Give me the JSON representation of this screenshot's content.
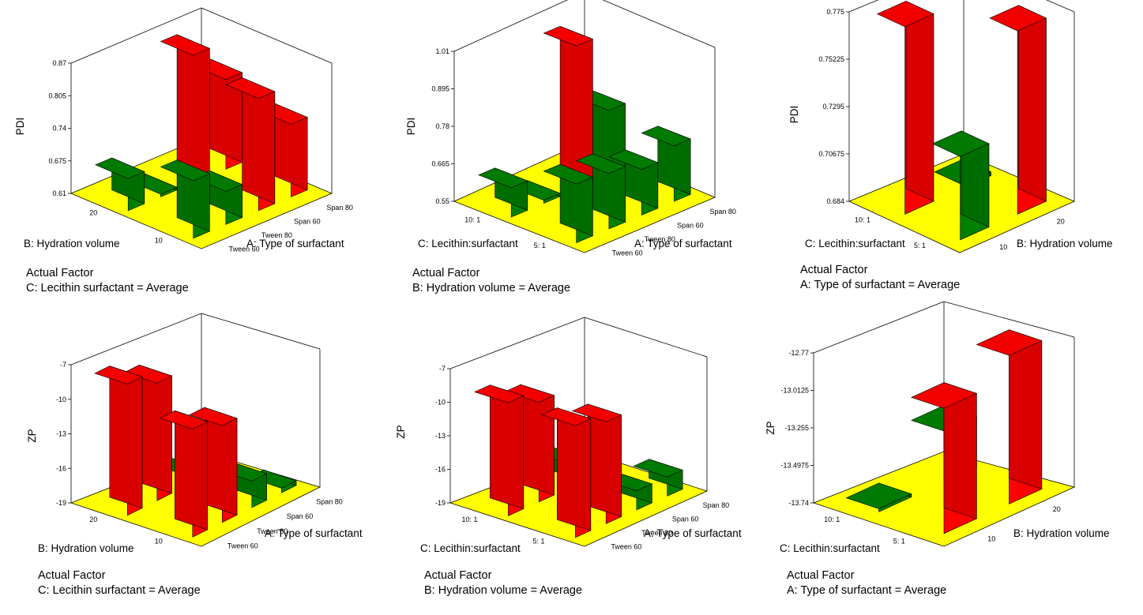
{
  "chart_data": [
    {
      "type": "bar3d",
      "ylabel": "PDI",
      "ytick_labels": [
        "0.61",
        "0.675",
        "0.74",
        "0.805",
        "0.87"
      ],
      "ylim": [
        0.61,
        0.87
      ],
      "x_axis": {
        "label": "A: Type of surfactant",
        "categories": [
          "Tween 60",
          "Tween 80",
          "Span 60",
          "Span 80"
        ]
      },
      "depth_axis": {
        "label": "B: Hydration volume",
        "categories": [
          "10",
          "20"
        ]
      },
      "values": {
        "20": [
          0.674,
          0.614,
          0.865,
          0.789
        ],
        "10": [
          0.725,
          0.676,
          0.834,
          0.755
        ]
      },
      "actual_factor": {
        "heading": "Actual Factor",
        "text": "C: Lecithin surfactant = Average"
      }
    },
    {
      "type": "bar3d",
      "ylabel": "PDI",
      "ytick_labels": [
        "0.55",
        "0.665",
        "0.78",
        "0.895",
        "1.01"
      ],
      "ylim": [
        0.55,
        1.01
      ],
      "x_axis": {
        "label": "A: Type of surfactant",
        "categories": [
          "Tween 60",
          "Tween 80",
          "Span 60",
          "Span 80"
        ]
      },
      "depth_axis": {
        "label": "C: Lecithin:surfactant",
        "categories": [
          "5: 1",
          "10: 1"
        ]
      },
      "values": {
        "10: 1": [
          0.64,
          0.555,
          0.99,
          0.75
        ],
        "5: 1": [
          0.73,
          0.72,
          0.69,
          0.72
        ]
      },
      "actual_factor": {
        "heading": "Actual Factor",
        "text": "B: Hydration volume = Average"
      }
    },
    {
      "type": "bar3d",
      "ylabel": "PDI",
      "ytick_labels": [
        "0.684",
        "0.70675",
        "0.7295",
        "0.75225",
        "0.775"
      ],
      "ylim": [
        0.684,
        0.775
      ],
      "x_axis": {
        "label": "B: Hydration volume",
        "categories": [
          "10",
          "20"
        ]
      },
      "depth_axis": {
        "label": "C: Lecithin:surfactant",
        "categories": [
          "5: 1",
          "10: 1"
        ]
      },
      "values": {
        "10: 1": [
          0.774,
          0.685
        ],
        "5: 1": [
          0.724,
          0.772
        ]
      },
      "actual_factor": {
        "heading": "Actual Factor",
        "text": "A: Type of surfactant = Average"
      }
    },
    {
      "type": "bar3d",
      "ylabel": "ZP",
      "ytick_labels": [
        "-19",
        "-16",
        "-13",
        "-10",
        "-7"
      ],
      "ylim": [
        -19,
        -7
      ],
      "x_axis": {
        "label": "A: Type of surfactant",
        "categories": [
          "Tween 60",
          "Tween 80",
          "Span 60",
          "Span 80"
        ]
      },
      "depth_axis": {
        "label": "B: Hydration volume",
        "categories": [
          "10",
          "20"
        ]
      },
      "values": {
        "20": [
          -7.6,
          -8.8,
          -18.1,
          -16.6
        ],
        "10": [
          -9.6,
          -10.6,
          -16.7,
          -18.6
        ]
      },
      "actual_factor": {
        "heading": "Actual Factor",
        "text": "C: Lecithin surfactant = Average"
      }
    },
    {
      "type": "bar3d",
      "ylabel": "ZP",
      "ytick_labels": [
        "-19",
        "-16",
        "-13",
        "-10",
        "-7"
      ],
      "ylim": [
        -19,
        -7
      ],
      "x_axis": {
        "label": "A: Type of surfactant",
        "categories": [
          "Tween 60",
          "Tween 80",
          "Span 60",
          "Span 80"
        ]
      },
      "depth_axis": {
        "label": "C: Lecithin:surfactant",
        "categories": [
          "5: 1",
          "10: 1"
        ]
      },
      "values": {
        "10: 1": [
          -8.9,
          -10.1,
          -16.9,
          -17.4
        ],
        "5: 1": [
          -9.0,
          -9.9,
          -17.3,
          -17.3
        ]
      },
      "actual_factor": {
        "heading": "Actual Factor",
        "text": "B: Hydration volume = Average"
      }
    },
    {
      "type": "bar3d",
      "ylabel": "ZP",
      "ytick_labels": [
        "-13.74",
        "-13.4975",
        "-13.255",
        "-13.0125",
        "-12.77"
      ],
      "ylim": [
        -13.74,
        -12.77
      ],
      "x_axis": {
        "label": "B: Hydration volume",
        "categories": [
          "10",
          "20"
        ]
      },
      "depth_axis": {
        "label": "C: Lecithin:surfactant",
        "categories": [
          "5: 1",
          "10: 1"
        ]
      },
      "values": {
        "10: 1": [
          -13.73,
          -13.41
        ],
        "5: 1": [
          -12.93,
          -12.78
        ]
      },
      "actual_factor": {
        "heading": "Actual Factor",
        "text": "A: Type of surfactant = Average"
      }
    }
  ],
  "colors": {
    "floor": "#ffff00",
    "high_bar": "#ff0000",
    "low_bar": "#008000",
    "frame": "#000000"
  }
}
